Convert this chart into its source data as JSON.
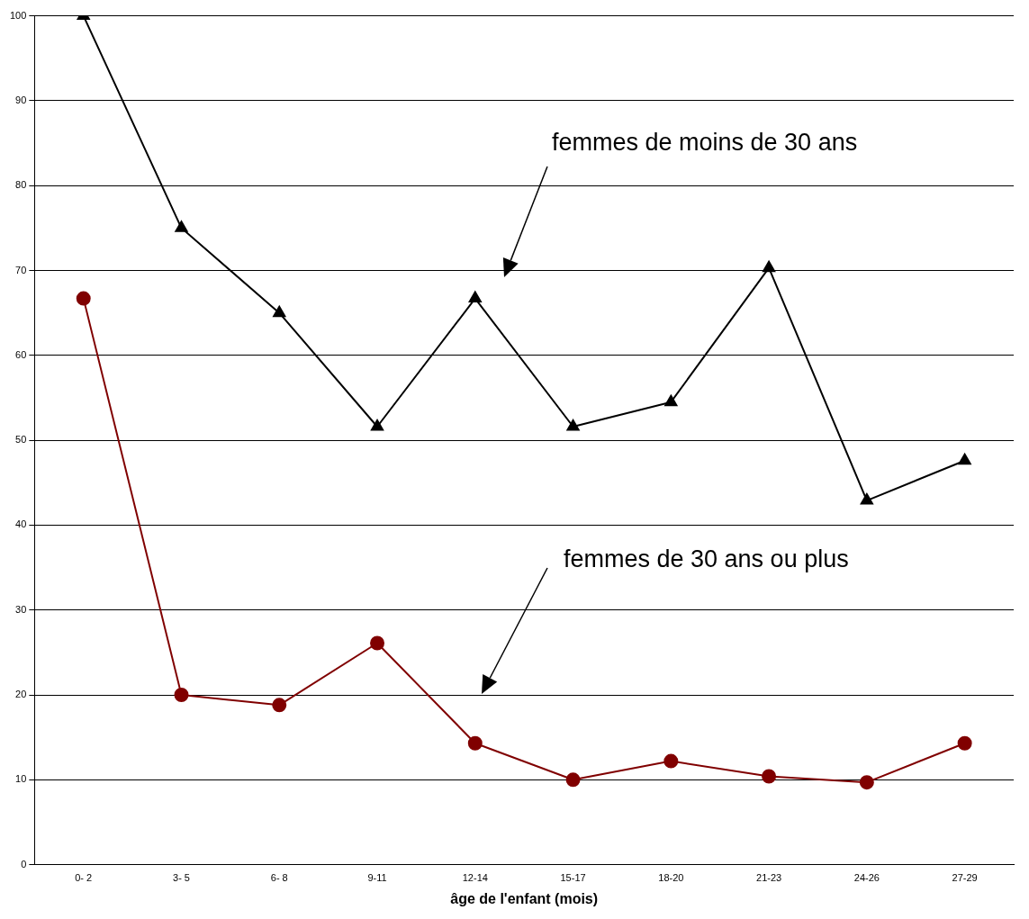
{
  "chart_data": {
    "type": "line",
    "xlabel": "âge de l'enfant (mois)",
    "categories": [
      "0- 2",
      "3- 5",
      "6- 8",
      "9-11",
      "12-14",
      "15-17",
      "18-20",
      "21-23",
      "24-26",
      "27-29"
    ],
    "series": [
      {
        "color": "#000000",
        "marker": "triangle",
        "values": [
          100,
          75,
          65,
          51.6,
          66.7,
          51.6,
          54.5,
          70.3,
          42.9,
          47.6
        ]
      },
      {
        "color": "#800000",
        "marker": "circle",
        "values": [
          66.7,
          20,
          18.8,
          26.1,
          14.3,
          10,
          12.2,
          10.4,
          9.7,
          14.3
        ]
      }
    ],
    "ylim": [
      0,
      100
    ],
    "yticks": [
      0,
      10,
      20,
      30,
      40,
      50,
      60,
      70,
      80,
      90,
      100
    ],
    "grid": "y",
    "legend": false,
    "annotations": [
      "femmes de moins de 30 ans",
      "femmes de 30 ans ou plus"
    ]
  }
}
